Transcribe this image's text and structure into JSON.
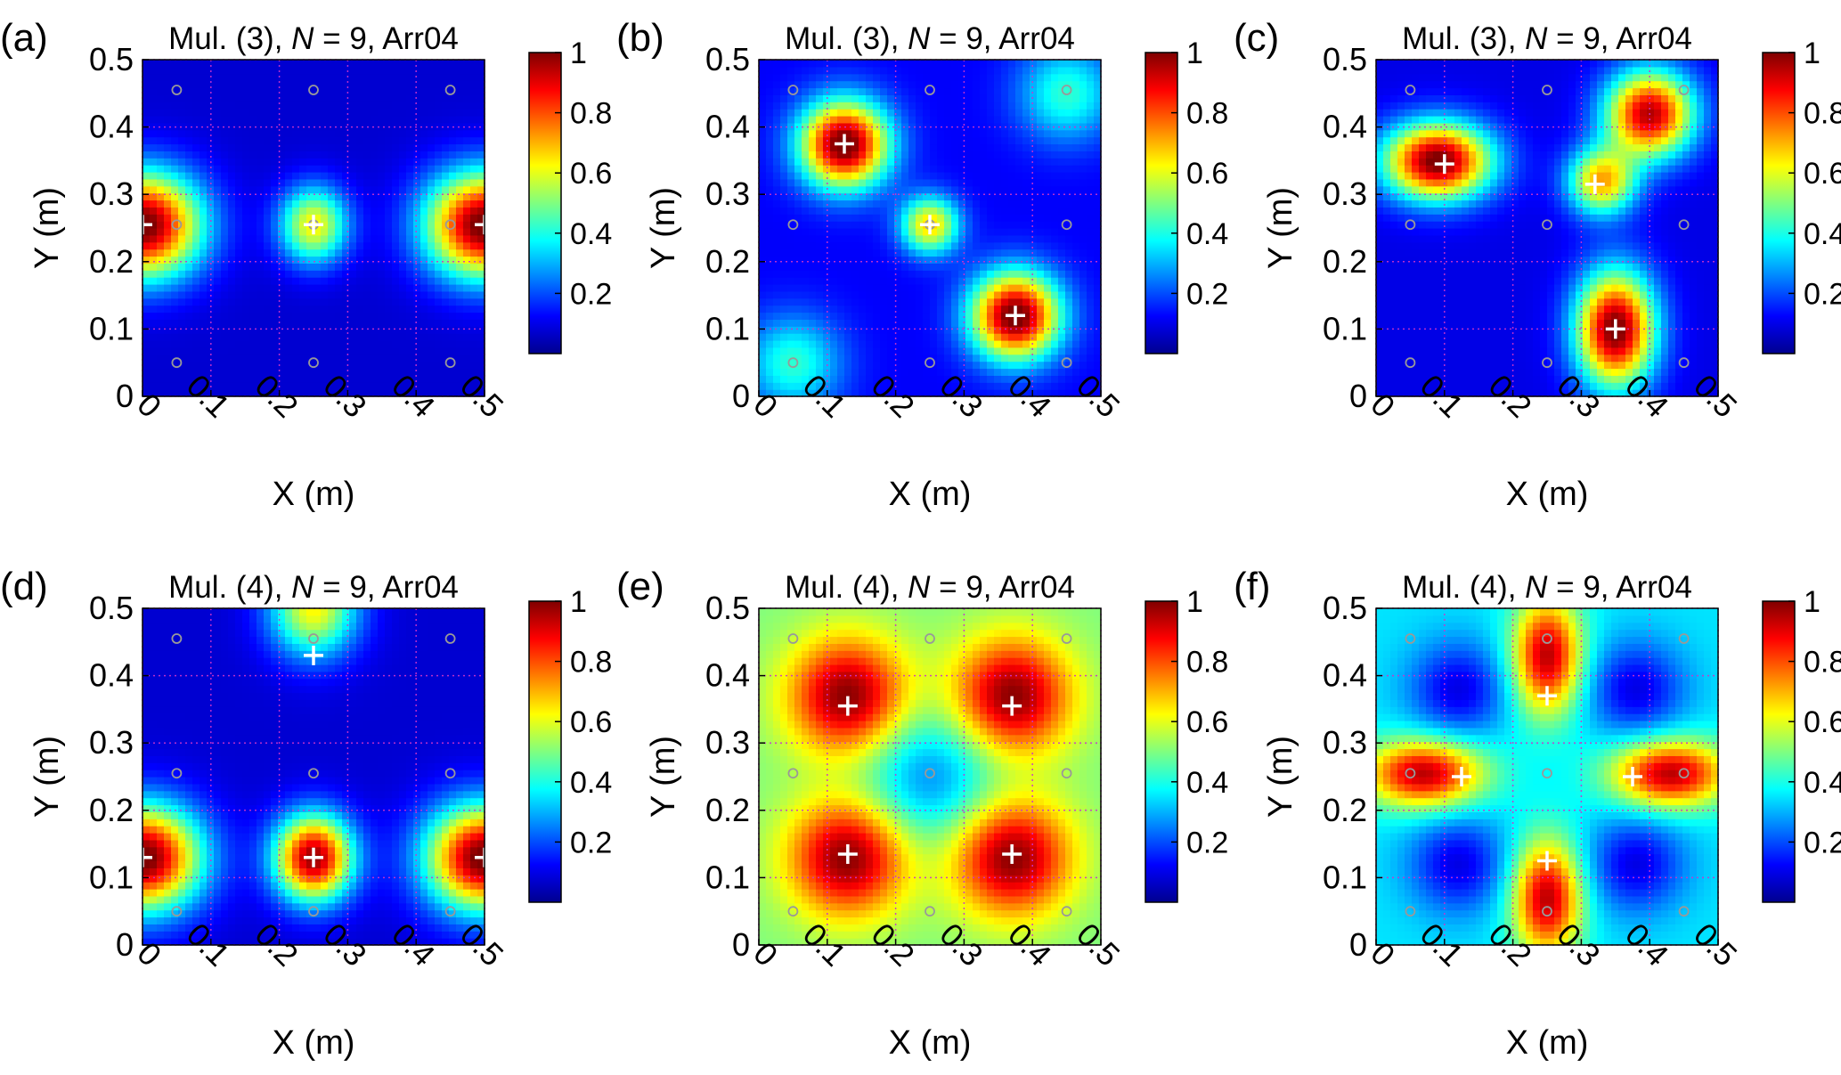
{
  "figure": {
    "colormap": "jet",
    "grid": true,
    "grid_color": "#cc33cc",
    "axis_color": "#000000",
    "sensor_marker_color": "#999999",
    "peak_marker_color": "#ffffff"
  },
  "chart_data": [
    {
      "type": "heatmap",
      "panel": "(a)",
      "title_prefix": "Mul. (3), ",
      "title_italic": "N",
      "title_suffix": " = 9, Arr04",
      "xlabel": "X (m)",
      "ylabel": "Y (m)",
      "xlim": [
        0,
        0.5
      ],
      "ylim": [
        0,
        0.5
      ],
      "x_ticks": [
        "0",
        "0.1",
        "0.2",
        "0.3",
        "0.4",
        "0.5"
      ],
      "y_ticks": [
        "0",
        "0.1",
        "0.2",
        "0.3",
        "0.4",
        "0.5"
      ],
      "colorbar": {
        "range": [
          0,
          1
        ],
        "ticks": [
          "0.2",
          "0.4",
          "0.6",
          "0.8",
          "1"
        ]
      },
      "background_level": 0.08,
      "sources": [
        {
          "x": 0.0,
          "y": 0.255,
          "sx": 0.06,
          "sy": 0.055,
          "a": 0.95
        },
        {
          "x": 0.5,
          "y": 0.255,
          "sx": 0.06,
          "sy": 0.055,
          "a": 0.95
        },
        {
          "x": 0.25,
          "y": 0.255,
          "sx": 0.035,
          "sy": 0.04,
          "a": 0.55
        }
      ],
      "sensors": [
        [
          0.05,
          0.05
        ],
        [
          0.25,
          0.05
        ],
        [
          0.45,
          0.05
        ],
        [
          0.05,
          0.255
        ],
        [
          0.25,
          0.255
        ],
        [
          0.45,
          0.255
        ],
        [
          0.05,
          0.455
        ],
        [
          0.25,
          0.455
        ],
        [
          0.45,
          0.455
        ]
      ],
      "peaks": [
        [
          0.0,
          0.255
        ],
        [
          0.25,
          0.255
        ],
        [
          0.5,
          0.255
        ]
      ]
    },
    {
      "type": "heatmap",
      "panel": "(b)",
      "title_prefix": "Mul. (3), ",
      "title_italic": "N",
      "title_suffix": " = 9, Arr04",
      "xlabel": "X (m)",
      "ylabel": "Y (m)",
      "xlim": [
        0,
        0.5
      ],
      "ylim": [
        0,
        0.5
      ],
      "x_ticks": [
        "0",
        "0.1",
        "0.2",
        "0.3",
        "0.4",
        "0.5"
      ],
      "y_ticks": [
        "0",
        "0.1",
        "0.2",
        "0.3",
        "0.4",
        "0.5"
      ],
      "colorbar": {
        "range": [
          0,
          1
        ],
        "ticks": [
          "0.2",
          "0.4",
          "0.6",
          "0.8",
          "1"
        ]
      },
      "background_level": 0.12,
      "sources": [
        {
          "x": 0.125,
          "y": 0.375,
          "sx": 0.045,
          "sy": 0.045,
          "a": 0.92
        },
        {
          "x": 0.375,
          "y": 0.12,
          "sx": 0.045,
          "sy": 0.045,
          "a": 0.92
        },
        {
          "x": 0.25,
          "y": 0.255,
          "sx": 0.03,
          "sy": 0.03,
          "a": 0.55
        },
        {
          "x": 0.05,
          "y": 0.05,
          "sx": 0.05,
          "sy": 0.05,
          "a": 0.3
        },
        {
          "x": 0.45,
          "y": 0.45,
          "sx": 0.05,
          "sy": 0.05,
          "a": 0.3
        }
      ],
      "sensors": [
        [
          0.05,
          0.05
        ],
        [
          0.25,
          0.05
        ],
        [
          0.45,
          0.05
        ],
        [
          0.05,
          0.255
        ],
        [
          0.25,
          0.255
        ],
        [
          0.45,
          0.255
        ],
        [
          0.05,
          0.455
        ],
        [
          0.25,
          0.455
        ],
        [
          0.45,
          0.455
        ]
      ],
      "peaks": [
        [
          0.125,
          0.375
        ],
        [
          0.25,
          0.255
        ],
        [
          0.375,
          0.12
        ]
      ]
    },
    {
      "type": "heatmap",
      "panel": "(c)",
      "title_prefix": "Mul. (3), ",
      "title_italic": "N",
      "title_suffix": " = 9, Arr04",
      "xlabel": "X (m)",
      "ylabel": "Y (m)",
      "xlim": [
        0,
        0.5
      ],
      "ylim": [
        0,
        0.5
      ],
      "x_ticks": [
        "0",
        "0.1",
        "0.2",
        "0.3",
        "0.4",
        "0.5"
      ],
      "y_ticks": [
        "0",
        "0.1",
        "0.2",
        "0.3",
        "0.4",
        "0.5"
      ],
      "colorbar": {
        "range": [
          0,
          1
        ],
        "ticks": [
          "0.2",
          "0.4",
          "0.6",
          "0.8",
          "1"
        ]
      },
      "background_level": 0.1,
      "sources": [
        {
          "x": 0.09,
          "y": 0.35,
          "sx": 0.055,
          "sy": 0.04,
          "a": 0.92
        },
        {
          "x": 0.35,
          "y": 0.1,
          "sx": 0.04,
          "sy": 0.06,
          "a": 0.92
        },
        {
          "x": 0.4,
          "y": 0.42,
          "sx": 0.045,
          "sy": 0.045,
          "a": 0.85
        },
        {
          "x": 0.33,
          "y": 0.32,
          "sx": 0.035,
          "sy": 0.035,
          "a": 0.6
        }
      ],
      "sensors": [
        [
          0.05,
          0.05
        ],
        [
          0.25,
          0.05
        ],
        [
          0.45,
          0.05
        ],
        [
          0.05,
          0.255
        ],
        [
          0.25,
          0.255
        ],
        [
          0.45,
          0.255
        ],
        [
          0.05,
          0.455
        ],
        [
          0.25,
          0.455
        ],
        [
          0.45,
          0.455
        ]
      ],
      "peaks": [
        [
          0.1,
          0.345
        ],
        [
          0.32,
          0.315
        ],
        [
          0.35,
          0.1
        ]
      ]
    },
    {
      "type": "heatmap",
      "panel": "(d)",
      "title_prefix": "Mul. (4), ",
      "title_italic": "N",
      "title_suffix": " = 9, Arr04",
      "xlabel": "X (m)",
      "ylabel": "Y (m)",
      "xlim": [
        0,
        0.5
      ],
      "ylim": [
        0,
        0.5
      ],
      "x_ticks": [
        "0",
        "0.1",
        "0.2",
        "0.3",
        "0.4",
        "0.5"
      ],
      "y_ticks": [
        "0",
        "0.1",
        "0.2",
        "0.3",
        "0.4",
        "0.5"
      ],
      "colorbar": {
        "range": [
          0,
          1
        ],
        "ticks": [
          "0.2",
          "0.4",
          "0.6",
          "0.8",
          "1"
        ]
      },
      "background_level": 0.08,
      "sources": [
        {
          "x": 0.0,
          "y": 0.13,
          "sx": 0.06,
          "sy": 0.055,
          "a": 0.95
        },
        {
          "x": 0.5,
          "y": 0.13,
          "sx": 0.06,
          "sy": 0.055,
          "a": 0.95
        },
        {
          "x": 0.25,
          "y": 0.13,
          "sx": 0.04,
          "sy": 0.045,
          "a": 0.9
        },
        {
          "x": 0.25,
          "y": 0.5,
          "sx": 0.045,
          "sy": 0.05,
          "a": 0.55
        }
      ],
      "sensors": [
        [
          0.05,
          0.05
        ],
        [
          0.25,
          0.05
        ],
        [
          0.45,
          0.05
        ],
        [
          0.05,
          0.255
        ],
        [
          0.25,
          0.255
        ],
        [
          0.45,
          0.255
        ],
        [
          0.05,
          0.455
        ],
        [
          0.25,
          0.455
        ],
        [
          0.45,
          0.455
        ]
      ],
      "peaks": [
        [
          0.0,
          0.13
        ],
        [
          0.25,
          0.13
        ],
        [
          0.5,
          0.13
        ],
        [
          0.25,
          0.43
        ]
      ]
    },
    {
      "type": "heatmap",
      "panel": "(e)",
      "title_prefix": "Mul. (4), ",
      "title_italic": "N",
      "title_suffix": " = 9, Arr04",
      "xlabel": "X (m)",
      "ylabel": "Y (m)",
      "xlim": [
        0,
        0.5
      ],
      "ylim": [
        0,
        0.5
      ],
      "x_ticks": [
        "0",
        "0.1",
        "0.2",
        "0.3",
        "0.4",
        "0.5"
      ],
      "y_ticks": [
        "0",
        "0.1",
        "0.2",
        "0.3",
        "0.4",
        "0.5"
      ],
      "colorbar": {
        "range": [
          0,
          1
        ],
        "ticks": [
          "0.2",
          "0.4",
          "0.6",
          "0.8",
          "1"
        ]
      },
      "background_level": 0.5,
      "sources": [
        {
          "x": 0.13,
          "y": 0.37,
          "sx": 0.06,
          "sy": 0.06,
          "a": 0.5
        },
        {
          "x": 0.37,
          "y": 0.37,
          "sx": 0.06,
          "sy": 0.06,
          "a": 0.5
        },
        {
          "x": 0.13,
          "y": 0.13,
          "sx": 0.06,
          "sy": 0.06,
          "a": 0.5
        },
        {
          "x": 0.37,
          "y": 0.13,
          "sx": 0.06,
          "sy": 0.06,
          "a": 0.5
        },
        {
          "x": 0.25,
          "y": 0.25,
          "sx": 0.07,
          "sy": 0.07,
          "a": -0.25
        }
      ],
      "sensors": [
        [
          0.05,
          0.05
        ],
        [
          0.25,
          0.05
        ],
        [
          0.45,
          0.05
        ],
        [
          0.05,
          0.255
        ],
        [
          0.25,
          0.255
        ],
        [
          0.45,
          0.255
        ],
        [
          0.05,
          0.455
        ],
        [
          0.25,
          0.455
        ],
        [
          0.45,
          0.455
        ]
      ],
      "peaks": [
        [
          0.13,
          0.355
        ],
        [
          0.37,
          0.355
        ],
        [
          0.13,
          0.135
        ],
        [
          0.37,
          0.135
        ]
      ]
    },
    {
      "type": "heatmap",
      "panel": "(f)",
      "title_prefix": "Mul. (4), ",
      "title_italic": "N",
      "title_suffix": " = 9, Arr04",
      "xlabel": "X (m)",
      "ylabel": "Y (m)",
      "xlim": [
        0,
        0.5
      ],
      "ylim": [
        0,
        0.5
      ],
      "x_ticks": [
        "0",
        "0.1",
        "0.2",
        "0.3",
        "0.4",
        "0.5"
      ],
      "y_ticks": [
        "0",
        "0.1",
        "0.2",
        "0.3",
        "0.4",
        "0.5"
      ],
      "colorbar": {
        "range": [
          0,
          1
        ],
        "ticks": [
          "0.2",
          "0.4",
          "0.6",
          "0.8",
          "1"
        ]
      },
      "background_level": 0.35,
      "sources": [
        {
          "x": 0.25,
          "y": 0.43,
          "sx": 0.035,
          "sy": 0.06,
          "a": 0.6
        },
        {
          "x": 0.25,
          "y": 0.07,
          "sx": 0.035,
          "sy": 0.06,
          "a": 0.6
        },
        {
          "x": 0.07,
          "y": 0.255,
          "sx": 0.06,
          "sy": 0.035,
          "a": 0.6
        },
        {
          "x": 0.43,
          "y": 0.255,
          "sx": 0.06,
          "sy": 0.035,
          "a": 0.6
        },
        {
          "x": 0.12,
          "y": 0.38,
          "sx": 0.05,
          "sy": 0.05,
          "a": -0.25
        },
        {
          "x": 0.38,
          "y": 0.38,
          "sx": 0.05,
          "sy": 0.05,
          "a": -0.25
        },
        {
          "x": 0.12,
          "y": 0.12,
          "sx": 0.05,
          "sy": 0.05,
          "a": -0.25
        },
        {
          "x": 0.38,
          "y": 0.12,
          "sx": 0.05,
          "sy": 0.05,
          "a": -0.25
        }
      ],
      "sensors": [
        [
          0.05,
          0.05
        ],
        [
          0.25,
          0.05
        ],
        [
          0.45,
          0.05
        ],
        [
          0.05,
          0.255
        ],
        [
          0.25,
          0.255
        ],
        [
          0.45,
          0.255
        ],
        [
          0.05,
          0.455
        ],
        [
          0.25,
          0.455
        ],
        [
          0.45,
          0.455
        ]
      ],
      "peaks": [
        [
          0.25,
          0.37
        ],
        [
          0.125,
          0.25
        ],
        [
          0.375,
          0.25
        ],
        [
          0.25,
          0.125
        ]
      ]
    }
  ]
}
